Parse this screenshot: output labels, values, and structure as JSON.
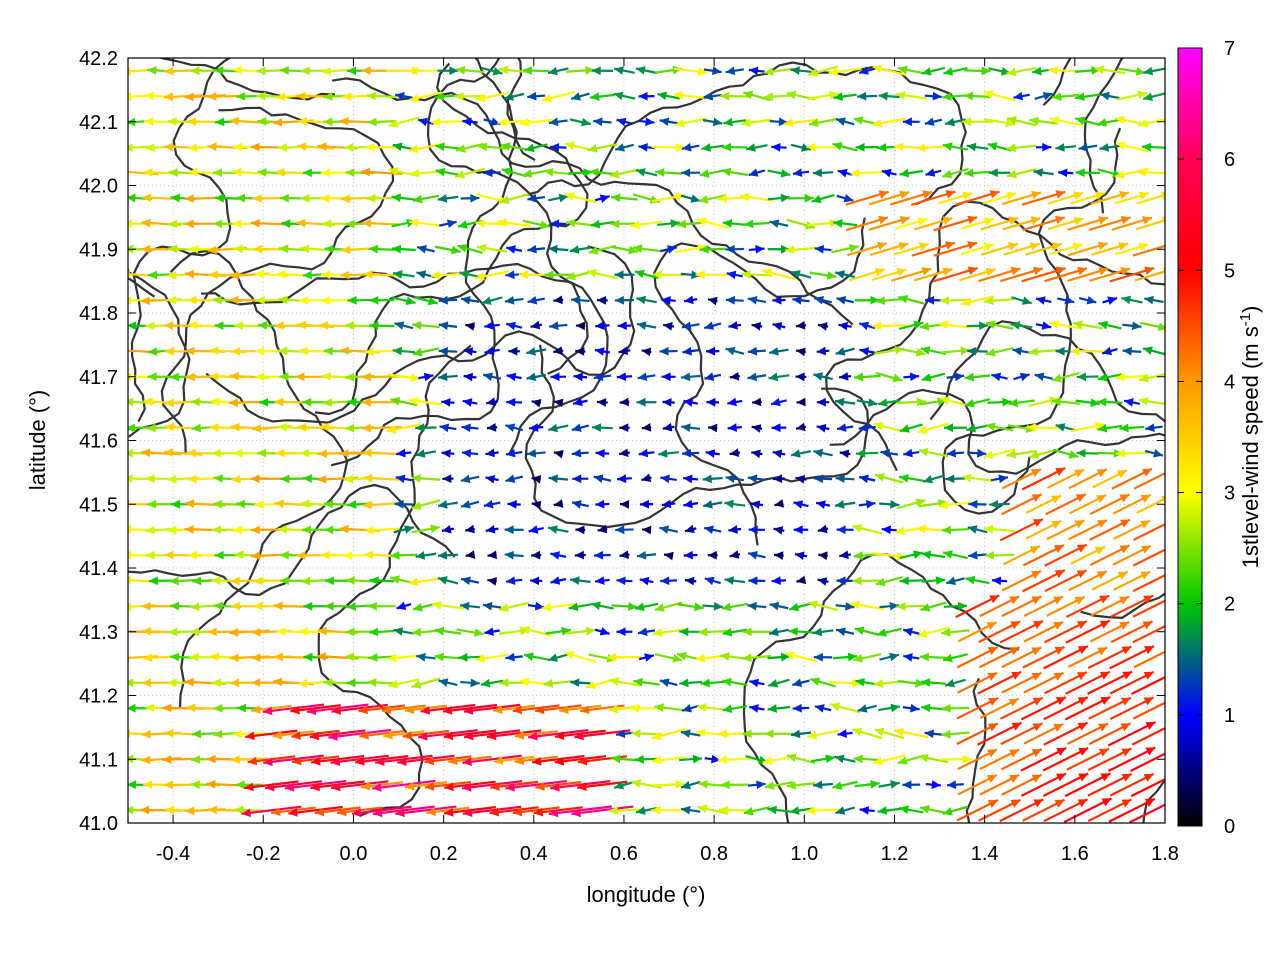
{
  "chart_data": {
    "type": "vector-field",
    "xlabel": "longitude (°)",
    "ylabel": "latitude (°)",
    "xlim": [
      -0.5,
      1.8
    ],
    "ylim": [
      41.0,
      42.2
    ],
    "xticks": [
      "-0.4",
      "-0.2",
      "0.0",
      "0.2",
      "0.4",
      "0.6",
      "0.8",
      "1.0",
      "1.2",
      "1.4",
      "1.6",
      "1.8"
    ],
    "yticks": [
      "41.0",
      "41.1",
      "41.2",
      "41.3",
      "41.4",
      "41.5",
      "41.6",
      "41.7",
      "41.8",
      "41.9",
      "42.0",
      "42.1",
      "42.2"
    ],
    "colorbar": {
      "label": "1stlevel-wind speed (m s-1)",
      "label_main": "1stlevel-wind speed (m s",
      "label_sup": "-1",
      "label_end": ")",
      "range": [
        0,
        7
      ],
      "ticks": [
        "0",
        "1",
        "2",
        "3",
        "4",
        "5",
        "6",
        "7"
      ],
      "stops": [
        "#000000",
        "#0000ff",
        "#00c800",
        "#ffff00",
        "#ff9900",
        "#ff0000",
        "#ff00ff"
      ]
    },
    "grid": true,
    "contours": true,
    "arrow_color_by": "wind speed"
  }
}
